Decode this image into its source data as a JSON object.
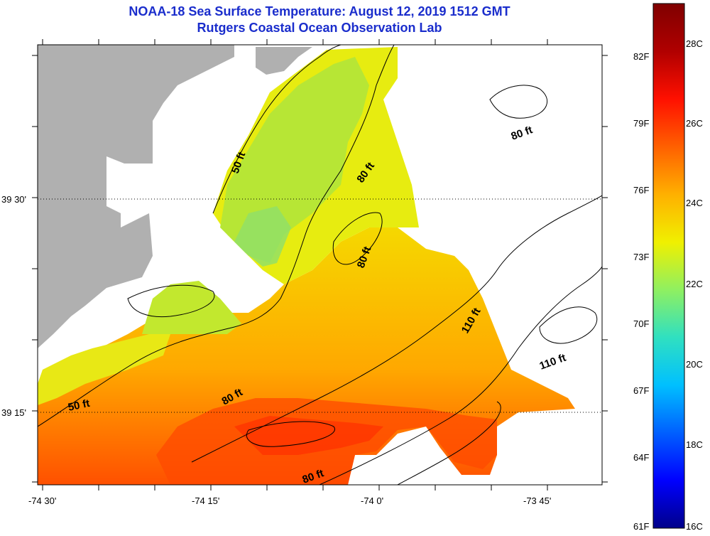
{
  "header": {
    "title": "NOAA-18 Sea Surface Temperature:  August 12, 2019 1512 GMT",
    "subtitle": "Rutgers Coastal Ocean Observation Lab"
  },
  "axes": {
    "longitude_ticks": [
      "-74 30'",
      "-74 15'",
      "-74 0'",
      "-73 45'"
    ],
    "latitude_ticks": [
      "39 30'",
      "39 15'"
    ]
  },
  "contour_labels": [
    {
      "text": "50 ft",
      "depth_ft": 50
    },
    {
      "text": "80 ft",
      "depth_ft": 80
    },
    {
      "text": "80 ft",
      "depth_ft": 80
    },
    {
      "text": "80 ft",
      "depth_ft": 80
    },
    {
      "text": "110 ft",
      "depth_ft": 110
    },
    {
      "text": "110 ft",
      "depth_ft": 110
    },
    {
      "text": "50 ft",
      "depth_ft": 50
    },
    {
      "text": "80 ft",
      "depth_ft": 80
    },
    {
      "text": "80 ft",
      "depth_ft": 80
    }
  ],
  "colorbar": {
    "fahrenheit_labels": [
      "82F",
      "79F",
      "76F",
      "73F",
      "70F",
      "67F",
      "64F",
      "61F"
    ],
    "celsius_labels": [
      "28C",
      "26C",
      "24C",
      "22C",
      "20C",
      "18C",
      "16C"
    ],
    "colors": [
      "#00008a",
      "#0000ff",
      "#0060ff",
      "#00c0ff",
      "#30e0c0",
      "#90f060",
      "#f0f000",
      "#ffb000",
      "#ff6000",
      "#ff1000",
      "#b00000",
      "#800000"
    ]
  },
  "colors": {
    "land": "#b0b0b0",
    "title": "#1a2dcc"
  }
}
